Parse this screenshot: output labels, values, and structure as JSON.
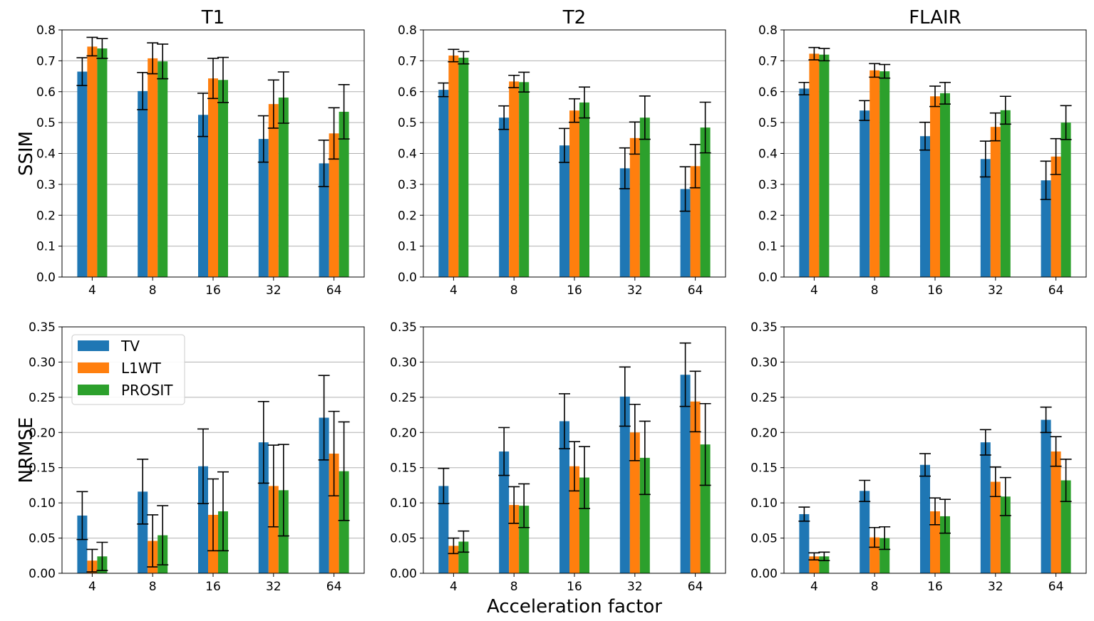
{
  "colors": {
    "TV": "#1f77b4",
    "L1WT": "#ff7f0e",
    "PROSIT": "#2ca02c"
  },
  "common_xlabel": "Acceleration factor",
  "legend": {
    "entries": [
      "TV",
      "L1WT",
      "PROSIT"
    ],
    "location": "upper-left of bottom-left panel"
  },
  "chart_data": [
    {
      "id": "ssim-t1",
      "type": "bar",
      "title": "T1",
      "ylabel": "SSIM",
      "xlabel": "",
      "categories": [
        "4",
        "8",
        "16",
        "32",
        "64"
      ],
      "ylim": [
        0,
        0.8
      ],
      "yticks": [
        "0.0",
        "0.1",
        "0.2",
        "0.3",
        "0.4",
        "0.5",
        "0.6",
        "0.7",
        "0.8"
      ],
      "grid": "y",
      "series": [
        {
          "name": "TV",
          "values": [
            0.665,
            0.602,
            0.525,
            0.447,
            0.368
          ],
          "errors": [
            0.045,
            0.06,
            0.07,
            0.075,
            0.075
          ]
        },
        {
          "name": "L1WT",
          "values": [
            0.746,
            0.708,
            0.643,
            0.56,
            0.465
          ],
          "errors": [
            0.03,
            0.05,
            0.065,
            0.078,
            0.083
          ]
        },
        {
          "name": "PROSIT",
          "values": [
            0.74,
            0.698,
            0.638,
            0.581,
            0.535
          ],
          "errors": [
            0.032,
            0.056,
            0.073,
            0.083,
            0.088
          ]
        }
      ]
    },
    {
      "id": "ssim-t2",
      "type": "bar",
      "title": "T2",
      "ylabel": "",
      "xlabel": "",
      "categories": [
        "4",
        "8",
        "16",
        "32",
        "64"
      ],
      "ylim": [
        0,
        0.8
      ],
      "yticks": [
        "0.0",
        "0.1",
        "0.2",
        "0.3",
        "0.4",
        "0.5",
        "0.6",
        "0.7",
        "0.8"
      ],
      "grid": "y",
      "series": [
        {
          "name": "TV",
          "values": [
            0.606,
            0.516,
            0.426,
            0.352,
            0.285
          ],
          "errors": [
            0.022,
            0.038,
            0.055,
            0.066,
            0.072
          ]
        },
        {
          "name": "L1WT",
          "values": [
            0.717,
            0.633,
            0.539,
            0.45,
            0.359
          ],
          "errors": [
            0.02,
            0.02,
            0.038,
            0.052,
            0.07
          ]
        },
        {
          "name": "PROSIT",
          "values": [
            0.71,
            0.631,
            0.565,
            0.516,
            0.484
          ],
          "errors": [
            0.02,
            0.032,
            0.05,
            0.07,
            0.082
          ]
        }
      ]
    },
    {
      "id": "ssim-flair",
      "type": "bar",
      "title": "FLAIR",
      "ylabel": "",
      "xlabel": "",
      "categories": [
        "4",
        "8",
        "16",
        "32",
        "64"
      ],
      "ylim": [
        0,
        0.8
      ],
      "yticks": [
        "0.0",
        "0.1",
        "0.2",
        "0.3",
        "0.4",
        "0.5",
        "0.6",
        "0.7",
        "0.8"
      ],
      "grid": "y",
      "series": [
        {
          "name": "TV",
          "values": [
            0.61,
            0.539,
            0.456,
            0.382,
            0.313
          ],
          "errors": [
            0.02,
            0.032,
            0.045,
            0.058,
            0.062
          ]
        },
        {
          "name": "L1WT",
          "values": [
            0.723,
            0.669,
            0.585,
            0.486,
            0.39
          ],
          "errors": [
            0.02,
            0.022,
            0.033,
            0.045,
            0.058
          ]
        },
        {
          "name": "PROSIT",
          "values": [
            0.72,
            0.666,
            0.595,
            0.54,
            0.5
          ],
          "errors": [
            0.02,
            0.022,
            0.035,
            0.045,
            0.055
          ]
        }
      ]
    },
    {
      "id": "nrmse-t1",
      "type": "bar",
      "title": "",
      "ylabel": "NRMSE",
      "xlabel": "",
      "categories": [
        "4",
        "8",
        "16",
        "32",
        "64"
      ],
      "ylim": [
        0,
        0.35
      ],
      "yticks": [
        "0.00",
        "0.05",
        "0.10",
        "0.15",
        "0.20",
        "0.25",
        "0.30",
        "0.35"
      ],
      "grid": "y",
      "series": [
        {
          "name": "TV",
          "values": [
            0.082,
            0.116,
            0.152,
            0.186,
            0.221
          ],
          "errors": [
            0.034,
            0.046,
            0.053,
            0.058,
            0.06
          ]
        },
        {
          "name": "L1WT",
          "values": [
            0.018,
            0.046,
            0.083,
            0.124,
            0.17
          ],
          "errors": [
            0.016,
            0.037,
            0.051,
            0.058,
            0.06
          ]
        },
        {
          "name": "PROSIT",
          "values": [
            0.024,
            0.054,
            0.088,
            0.118,
            0.145
          ],
          "errors": [
            0.02,
            0.042,
            0.056,
            0.065,
            0.07
          ]
        }
      ]
    },
    {
      "id": "nrmse-t2",
      "type": "bar",
      "title": "",
      "ylabel": "",
      "xlabel": "",
      "categories": [
        "4",
        "8",
        "16",
        "32",
        "64"
      ],
      "ylim": [
        0,
        0.35
      ],
      "yticks": [
        "0.00",
        "0.05",
        "0.10",
        "0.15",
        "0.20",
        "0.25",
        "0.30",
        "0.35"
      ],
      "grid": "y",
      "series": [
        {
          "name": "TV",
          "values": [
            0.124,
            0.173,
            0.216,
            0.251,
            0.282
          ],
          "errors": [
            0.025,
            0.034,
            0.039,
            0.042,
            0.045
          ]
        },
        {
          "name": "L1WT",
          "values": [
            0.039,
            0.097,
            0.152,
            0.2,
            0.244
          ],
          "errors": [
            0.011,
            0.026,
            0.035,
            0.04,
            0.043
          ]
        },
        {
          "name": "PROSIT",
          "values": [
            0.045,
            0.096,
            0.136,
            0.164,
            0.183
          ],
          "errors": [
            0.015,
            0.031,
            0.044,
            0.052,
            0.058
          ]
        }
      ]
    },
    {
      "id": "nrmse-flair",
      "type": "bar",
      "title": "",
      "ylabel": "",
      "xlabel": "",
      "categories": [
        "4",
        "8",
        "16",
        "32",
        "64"
      ],
      "ylim": [
        0,
        0.35
      ],
      "yticks": [
        "0.00",
        "0.05",
        "0.10",
        "0.15",
        "0.20",
        "0.25",
        "0.30",
        "0.35"
      ],
      "grid": "y",
      "series": [
        {
          "name": "TV",
          "values": [
            0.084,
            0.117,
            0.154,
            0.186,
            0.218
          ],
          "errors": [
            0.01,
            0.015,
            0.016,
            0.018,
            0.018
          ]
        },
        {
          "name": "L1WT",
          "values": [
            0.024,
            0.051,
            0.088,
            0.13,
            0.173
          ],
          "errors": [
            0.005,
            0.014,
            0.019,
            0.021,
            0.021
          ]
        },
        {
          "name": "PROSIT",
          "values": [
            0.024,
            0.05,
            0.081,
            0.109,
            0.132
          ],
          "errors": [
            0.006,
            0.016,
            0.024,
            0.027,
            0.03
          ]
        }
      ]
    }
  ]
}
